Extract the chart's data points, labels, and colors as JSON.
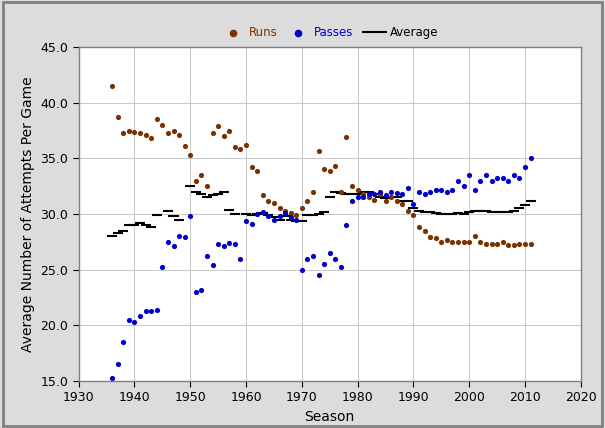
{
  "title": "",
  "xlabel": "Season",
  "ylabel": "Average Number of Attempts Per Game",
  "xlim": [
    1930,
    2020
  ],
  "ylim": [
    15.0,
    45.0
  ],
  "yticks": [
    15.0,
    20.0,
    25.0,
    30.0,
    35.0,
    40.0,
    45.0
  ],
  "xticks": [
    1930,
    1940,
    1950,
    1960,
    1970,
    1980,
    1990,
    2000,
    2010,
    2020
  ],
  "runs": [
    [
      1936,
      41.5
    ],
    [
      1937,
      38.7
    ],
    [
      1938,
      37.3
    ],
    [
      1939,
      37.5
    ],
    [
      1940,
      37.4
    ],
    [
      1941,
      37.3
    ],
    [
      1942,
      37.1
    ],
    [
      1943,
      36.8
    ],
    [
      1944,
      38.5
    ],
    [
      1945,
      38.0
    ],
    [
      1946,
      37.3
    ],
    [
      1947,
      37.5
    ],
    [
      1948,
      37.1
    ],
    [
      1949,
      36.1
    ],
    [
      1950,
      35.3
    ],
    [
      1951,
      33.0
    ],
    [
      1952,
      33.5
    ],
    [
      1953,
      32.5
    ],
    [
      1954,
      37.3
    ],
    [
      1955,
      37.9
    ],
    [
      1956,
      37.0
    ],
    [
      1957,
      37.5
    ],
    [
      1958,
      36.0
    ],
    [
      1959,
      35.8
    ],
    [
      1960,
      36.2
    ],
    [
      1961,
      34.2
    ],
    [
      1962,
      33.9
    ],
    [
      1963,
      31.7
    ],
    [
      1964,
      31.2
    ],
    [
      1965,
      31.0
    ],
    [
      1966,
      30.5
    ],
    [
      1967,
      30.3
    ],
    [
      1968,
      30.1
    ],
    [
      1969,
      29.9
    ],
    [
      1970,
      30.5
    ],
    [
      1971,
      31.2
    ],
    [
      1972,
      32.0
    ],
    [
      1973,
      35.7
    ],
    [
      1974,
      34.0
    ],
    [
      1975,
      33.9
    ],
    [
      1976,
      34.3
    ],
    [
      1977,
      32.0
    ],
    [
      1978,
      36.9
    ],
    [
      1979,
      32.5
    ],
    [
      1980,
      32.2
    ],
    [
      1981,
      31.8
    ],
    [
      1982,
      31.5
    ],
    [
      1983,
      31.3
    ],
    [
      1984,
      31.8
    ],
    [
      1985,
      31.2
    ],
    [
      1986,
      31.5
    ],
    [
      1987,
      31.2
    ],
    [
      1988,
      30.9
    ],
    [
      1989,
      30.3
    ],
    [
      1990,
      29.9
    ],
    [
      1991,
      28.8
    ],
    [
      1992,
      28.5
    ],
    [
      1993,
      27.9
    ],
    [
      1994,
      27.8
    ],
    [
      1995,
      27.5
    ],
    [
      1996,
      27.7
    ],
    [
      1997,
      27.5
    ],
    [
      1998,
      27.5
    ],
    [
      1999,
      27.5
    ],
    [
      2000,
      27.5
    ],
    [
      2001,
      28.0
    ],
    [
      2002,
      27.5
    ],
    [
      2003,
      27.3
    ],
    [
      2004,
      27.3
    ],
    [
      2005,
      27.3
    ],
    [
      2006,
      27.5
    ],
    [
      2007,
      27.2
    ],
    [
      2008,
      27.2
    ],
    [
      2009,
      27.3
    ],
    [
      2010,
      27.3
    ],
    [
      2011,
      27.3
    ]
  ],
  "passes": [
    [
      1936,
      15.3
    ],
    [
      1937,
      16.5
    ],
    [
      1938,
      18.5
    ],
    [
      1939,
      20.5
    ],
    [
      1940,
      20.3
    ],
    [
      1941,
      20.8
    ],
    [
      1942,
      21.3
    ],
    [
      1943,
      21.3
    ],
    [
      1944,
      21.4
    ],
    [
      1945,
      25.2
    ],
    [
      1946,
      27.5
    ],
    [
      1947,
      27.1
    ],
    [
      1948,
      28.0
    ],
    [
      1949,
      27.9
    ],
    [
      1950,
      29.8
    ],
    [
      1951,
      23.0
    ],
    [
      1952,
      23.2
    ],
    [
      1953,
      26.2
    ],
    [
      1954,
      25.4
    ],
    [
      1955,
      27.3
    ],
    [
      1956,
      27.1
    ],
    [
      1957,
      27.4
    ],
    [
      1958,
      27.3
    ],
    [
      1959,
      26.0
    ],
    [
      1960,
      29.4
    ],
    [
      1961,
      29.1
    ],
    [
      1962,
      30.0
    ],
    [
      1963,
      30.2
    ],
    [
      1964,
      29.8
    ],
    [
      1965,
      29.5
    ],
    [
      1966,
      29.8
    ],
    [
      1967,
      30.1
    ],
    [
      1968,
      29.7
    ],
    [
      1969,
      29.5
    ],
    [
      1970,
      25.0
    ],
    [
      1971,
      26.0
    ],
    [
      1972,
      26.2
    ],
    [
      1973,
      24.5
    ],
    [
      1974,
      25.5
    ],
    [
      1975,
      26.5
    ],
    [
      1976,
      26.0
    ],
    [
      1977,
      25.2
    ],
    [
      1978,
      29.0
    ],
    [
      1979,
      31.2
    ],
    [
      1980,
      31.5
    ],
    [
      1981,
      31.5
    ],
    [
      1982,
      31.8
    ],
    [
      1983,
      31.8
    ],
    [
      1984,
      32.0
    ],
    [
      1985,
      31.7
    ],
    [
      1986,
      32.0
    ],
    [
      1987,
      31.9
    ],
    [
      1988,
      31.8
    ],
    [
      1989,
      32.3
    ],
    [
      1990,
      30.9
    ],
    [
      1991,
      32.0
    ],
    [
      1992,
      31.8
    ],
    [
      1993,
      32.0
    ],
    [
      1994,
      32.2
    ],
    [
      1995,
      32.2
    ],
    [
      1996,
      32.0
    ],
    [
      1997,
      32.2
    ],
    [
      1998,
      33.0
    ],
    [
      1999,
      32.5
    ],
    [
      2000,
      33.5
    ],
    [
      2001,
      32.2
    ],
    [
      2002,
      33.0
    ],
    [
      2003,
      33.5
    ],
    [
      2004,
      33.0
    ],
    [
      2005,
      33.2
    ],
    [
      2006,
      33.2
    ],
    [
      2007,
      33.0
    ],
    [
      2008,
      33.5
    ],
    [
      2009,
      33.2
    ],
    [
      2010,
      34.2
    ],
    [
      2011,
      35.0
    ]
  ],
  "averages": [
    [
      1936,
      28.0
    ],
    [
      1937,
      28.3
    ],
    [
      1938,
      28.5
    ],
    [
      1939,
      29.0
    ],
    [
      1940,
      29.0
    ],
    [
      1941,
      29.2
    ],
    [
      1942,
      29.0
    ],
    [
      1943,
      28.8
    ],
    [
      1944,
      29.9
    ],
    [
      1946,
      30.3
    ],
    [
      1947,
      29.8
    ],
    [
      1948,
      29.5
    ],
    [
      1950,
      32.5
    ],
    [
      1951,
      32.0
    ],
    [
      1952,
      31.8
    ],
    [
      1953,
      31.5
    ],
    [
      1954,
      31.7
    ],
    [
      1955,
      31.8
    ],
    [
      1956,
      32.0
    ],
    [
      1957,
      30.4
    ],
    [
      1958,
      30.0
    ],
    [
      1960,
      30.0
    ],
    [
      1961,
      29.9
    ],
    [
      1962,
      30.0
    ],
    [
      1963,
      30.1
    ],
    [
      1964,
      29.9
    ],
    [
      1965,
      29.7
    ],
    [
      1966,
      29.5
    ],
    [
      1967,
      29.8
    ],
    [
      1968,
      29.5
    ],
    [
      1969,
      29.4
    ],
    [
      1970,
      29.4
    ],
    [
      1971,
      29.9
    ],
    [
      1972,
      29.9
    ],
    [
      1973,
      30.0
    ],
    [
      1974,
      30.2
    ],
    [
      1975,
      31.5
    ],
    [
      1976,
      32.0
    ],
    [
      1977,
      31.9
    ],
    [
      1978,
      31.8
    ],
    [
      1979,
      31.8
    ],
    [
      1980,
      31.8
    ],
    [
      1981,
      32.0
    ],
    [
      1982,
      32.0
    ],
    [
      1983,
      31.8
    ],
    [
      1984,
      31.5
    ],
    [
      1985,
      31.4
    ],
    [
      1986,
      31.5
    ],
    [
      1987,
      31.5
    ],
    [
      1988,
      31.2
    ],
    [
      1989,
      31.2
    ],
    [
      1990,
      30.5
    ],
    [
      1991,
      30.3
    ],
    [
      1992,
      30.2
    ],
    [
      1993,
      30.2
    ],
    [
      1994,
      30.1
    ],
    [
      1995,
      30.0
    ],
    [
      1996,
      30.0
    ],
    [
      1997,
      30.0
    ],
    [
      1998,
      30.1
    ],
    [
      1999,
      30.0
    ],
    [
      2000,
      30.2
    ],
    [
      2001,
      30.3
    ],
    [
      2002,
      30.3
    ],
    [
      2003,
      30.3
    ],
    [
      2004,
      30.2
    ],
    [
      2005,
      30.2
    ],
    [
      2006,
      30.2
    ],
    [
      2007,
      30.2
    ],
    [
      2008,
      30.3
    ],
    [
      2009,
      30.5
    ],
    [
      2010,
      30.8
    ],
    [
      2011,
      31.2
    ]
  ],
  "run_color": "#7B3200",
  "pass_color": "#0000CC",
  "avg_color": "#000000",
  "fig_background": "#DCDCDC",
  "plot_background": "#FFFFFF",
  "border_color": "#808080",
  "legend_fontsize": 8.5,
  "axis_fontsize": 10,
  "tick_fontsize": 9
}
